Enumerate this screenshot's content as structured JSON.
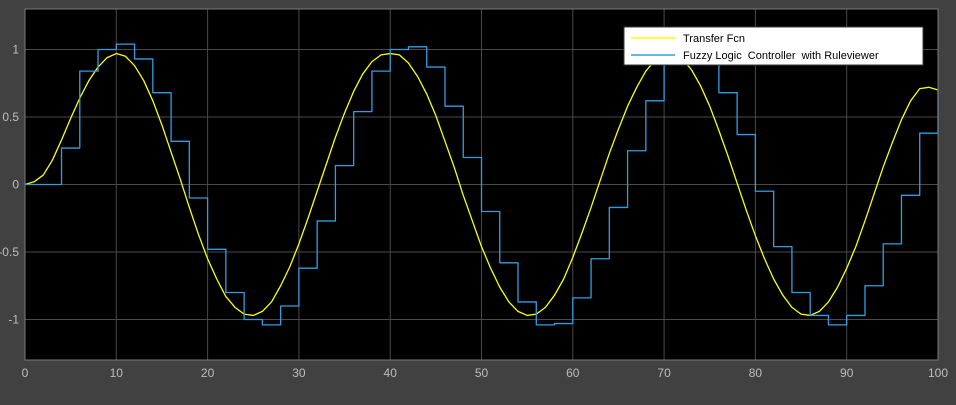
{
  "chart_data": {
    "type": "line",
    "title": "",
    "xlabel": "",
    "ylabel": "",
    "xlim": [
      0,
      100
    ],
    "ylim": [
      -1.3,
      1.3
    ],
    "x_ticks": [
      0,
      10,
      20,
      30,
      40,
      50,
      60,
      70,
      80,
      90,
      100
    ],
    "y_ticks": [
      -1,
      -0.5,
      0,
      0.5,
      1
    ],
    "grid": true,
    "legend_position": "top-right",
    "colors": {
      "figure_background": "#414141",
      "axes_background": "#000000",
      "grid": "#4a4a4a",
      "tick_text": "#bdbdbd",
      "legend_background": "#ffffff"
    },
    "series": [
      {
        "name": "Transfer Fcn",
        "color": "#ffff00",
        "style": "smooth",
        "x": [
          0,
          1,
          2,
          3,
          4,
          5,
          6,
          7,
          8,
          9,
          10,
          11,
          12,
          13,
          14,
          15,
          16,
          17,
          18,
          19,
          20,
          21,
          22,
          23,
          24,
          25,
          26,
          27,
          28,
          29,
          30,
          31,
          32,
          33,
          34,
          35,
          36,
          37,
          38,
          39,
          40,
          41,
          42,
          43,
          44,
          45,
          46,
          47,
          48,
          49,
          50,
          51,
          52,
          53,
          54,
          55,
          56,
          57,
          58,
          59,
          60,
          61,
          62,
          63,
          64,
          65,
          66,
          67,
          68,
          69,
          70,
          71,
          72,
          73,
          74,
          75,
          76,
          77,
          78,
          79,
          80,
          81,
          82,
          83,
          84,
          85,
          86,
          87,
          88,
          89,
          90,
          91,
          92,
          93,
          94,
          95,
          96,
          97,
          98,
          99,
          100
        ],
        "y": [
          0,
          0.02,
          0.07,
          0.18,
          0.33,
          0.49,
          0.64,
          0.77,
          0.87,
          0.94,
          0.97,
          0.95,
          0.88,
          0.77,
          0.62,
          0.44,
          0.24,
          0.04,
          -0.17,
          -0.37,
          -0.55,
          -0.7,
          -0.83,
          -0.91,
          -0.96,
          -0.97,
          -0.94,
          -0.87,
          -0.75,
          -0.61,
          -0.44,
          -0.25,
          -0.05,
          0.15,
          0.35,
          0.53,
          0.69,
          0.82,
          0.91,
          0.96,
          0.97,
          0.96,
          0.9,
          0.8,
          0.67,
          0.51,
          0.32,
          0.13,
          -0.08,
          -0.27,
          -0.46,
          -0.62,
          -0.76,
          -0.87,
          -0.94,
          -0.97,
          -0.96,
          -0.91,
          -0.82,
          -0.7,
          -0.54,
          -0.36,
          -0.17,
          0.03,
          0.23,
          0.41,
          0.58,
          0.72,
          0.84,
          0.92,
          0.97,
          0.97,
          0.93,
          0.85,
          0.73,
          0.58,
          0.4,
          0.21,
          0.01,
          -0.19,
          -0.38,
          -0.55,
          -0.7,
          -0.82,
          -0.91,
          -0.96,
          -0.97,
          -0.94,
          -0.87,
          -0.76,
          -0.62,
          -0.46,
          -0.27,
          -0.07,
          0.13,
          0.31,
          0.48,
          0.62,
          0.71,
          0.72,
          0.7
        ]
      },
      {
        "name": "Fuzzy Logic  Controller  with Ruleviewer",
        "color": "#2e9fe6",
        "style": "staircase",
        "x": [
          0,
          4,
          6,
          8,
          10,
          12,
          14,
          16,
          18,
          20,
          22,
          24,
          26,
          28,
          30,
          32,
          34,
          36,
          38,
          40,
          42,
          44,
          46,
          48,
          50,
          52,
          54,
          56,
          58,
          60,
          62,
          64,
          66,
          68,
          70,
          72,
          74,
          76,
          78,
          80,
          82,
          84,
          86,
          88,
          90,
          92,
          94,
          96,
          98,
          100
        ],
        "y": [
          0,
          0.27,
          0.84,
          1.0,
          1.04,
          0.93,
          0.68,
          0.32,
          -0.1,
          -0.48,
          -0.8,
          -1.0,
          -1.04,
          -0.9,
          -0.62,
          -0.27,
          0.14,
          0.54,
          0.84,
          1.0,
          1.02,
          0.87,
          0.58,
          0.2,
          -0.2,
          -0.58,
          -0.87,
          -1.04,
          -1.03,
          -0.84,
          -0.55,
          -0.17,
          0.25,
          0.62,
          0.92,
          1.04,
          0.92,
          0.68,
          0.37,
          -0.05,
          -0.46,
          -0.8,
          -0.97,
          -1.04,
          -0.97,
          -0.75,
          -0.44,
          -0.08,
          0.38,
          0.7
        ]
      }
    ]
  }
}
